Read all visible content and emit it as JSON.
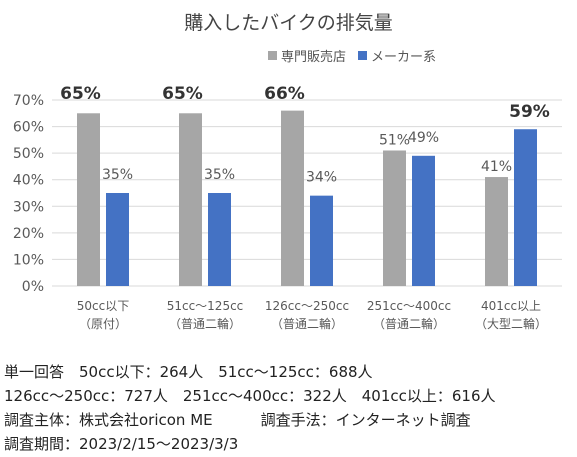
{
  "chart_data": {
    "type": "bar",
    "title": "購入したバイクの排気量",
    "categories": [
      [
        "50cc以下",
        "（原付）"
      ],
      [
        "51cc～125cc",
        "（普通二輪）"
      ],
      [
        "126cc～250cc",
        "（普通二輪）"
      ],
      [
        "251cc～400cc",
        "（普通二輪）"
      ],
      [
        "401cc以上",
        "（大型二輪）"
      ]
    ],
    "series": [
      {
        "name": "専門販売店",
        "color": "#a6a6a6",
        "values": [
          65,
          65,
          66,
          51,
          41
        ],
        "labels": [
          "65%",
          "65%",
          "66%",
          "51%",
          "41%"
        ],
        "bold": [
          true,
          true,
          true,
          false,
          false
        ]
      },
      {
        "name": "メーカー系",
        "color": "#4472c4",
        "values": [
          35,
          35,
          34,
          49,
          59
        ],
        "labels": [
          "35%",
          "35%",
          "34%",
          "49%",
          "59%"
        ],
        "bold": [
          false,
          false,
          false,
          false,
          true
        ]
      }
    ],
    "yticks": [
      "0%",
      "10%",
      "20%",
      "30%",
      "40%",
      "50%",
      "60%",
      "70%"
    ],
    "ylim": [
      0,
      70
    ],
    "grid": true,
    "legend_position": "top-right"
  },
  "notes": {
    "line1": "単一回答　50cc以下：264人　51cc～125cc：688人",
    "line2": "126cc～250cc：727人　251cc～400cc：322人　401cc以上：616人",
    "line3a": "調査主体：株式会社oricon ME",
    "line3b": "調査手法：インターネット調査",
    "line4": "調査期間：2023/2/15～2023/3/3"
  }
}
